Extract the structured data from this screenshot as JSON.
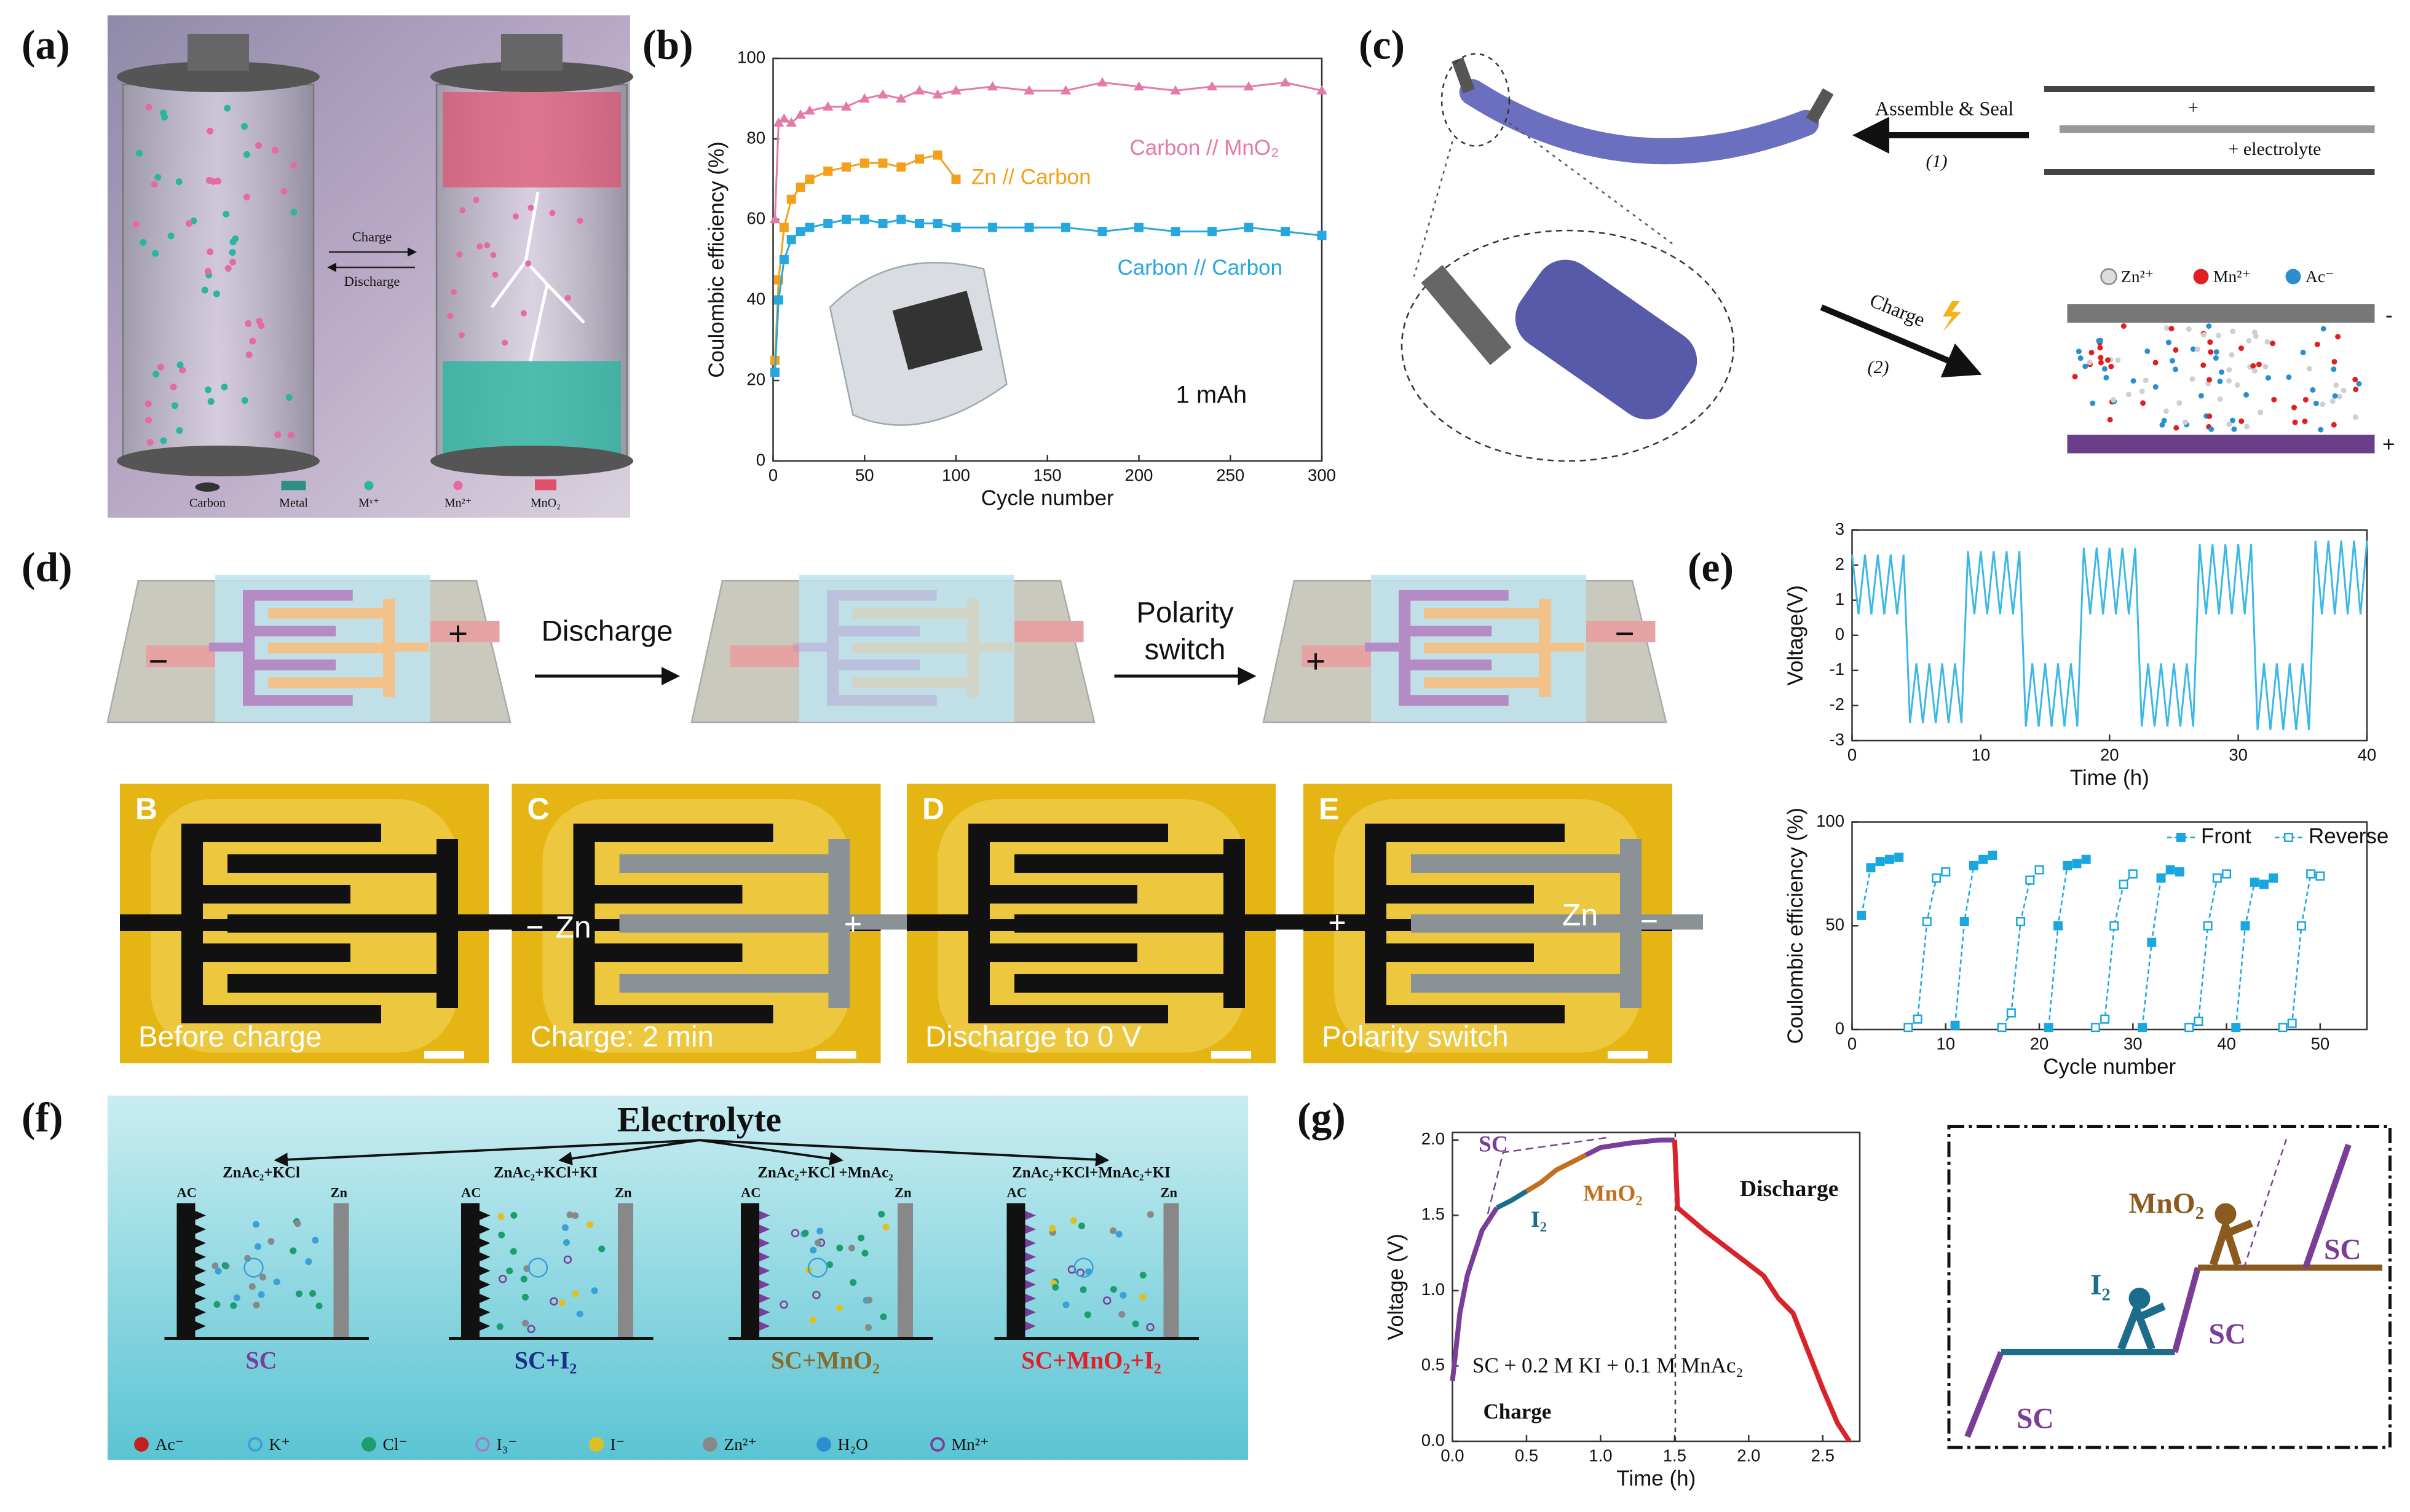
{
  "panel_labels": [
    "(a)",
    "(b)",
    "(c)",
    "(d)",
    "(e)",
    "(f)",
    "(g)"
  ],
  "panel_a": {
    "process": [
      "Charge",
      "Discharge"
    ],
    "legend": [
      "Carbon",
      "Metal",
      "Mˣ⁺",
      "Mn²⁺",
      "MnO₂"
    ]
  },
  "panel_c": {
    "step1": "Assemble & Seal",
    "step1_number": "(1)",
    "plus": "+",
    "electrolyte": "+ electrolyte",
    "step2": "Charge",
    "step2_number": "(2)",
    "ions": [
      "Zn²⁺",
      "Mn²⁺",
      "Ac⁻"
    ],
    "electrodes": [
      "-",
      "+"
    ]
  },
  "panel_d": {
    "step1": "Discharge",
    "step2": [
      "Polarity",
      "switch"
    ],
    "schematic_signs": {
      "first": [
        "−",
        "+"
      ],
      "third": [
        "+",
        "−"
      ]
    },
    "photos": [
      {
        "letter": "B",
        "caption": "Before charge"
      },
      {
        "letter": "C",
        "caption": "Charge: 2 min",
        "labels": [
          "−",
          "Zn",
          "+"
        ]
      },
      {
        "letter": "D",
        "caption": "Discharge to 0 V"
      },
      {
        "letter": "E",
        "caption": "Polarity switch",
        "labels": [
          "+",
          "Zn",
          "−"
        ]
      }
    ]
  },
  "panel_f": {
    "title": "Electrolyte",
    "cells": [
      {
        "composition": "ZnAc₂+KCl",
        "left": "AC",
        "right": "Zn",
        "label": "SC",
        "color": "#7a3d98"
      },
      {
        "composition": "ZnAc₂+KCl+KI",
        "left": "AC",
        "right": "Zn",
        "label": "SC+I₂",
        "color": "#1a2f8a"
      },
      {
        "composition": "ZnAc₂+KCl +MnAc₂",
        "left": "AC",
        "right": "Zn",
        "label": "SC+MnO₂",
        "color": "#8b6b2a"
      },
      {
        "composition": "ZnAc₂+KCl+MnAc₂+KI",
        "left": "AC",
        "right": "Zn",
        "label": "SC+MnO₂+I₂",
        "color": "#e0202a"
      }
    ],
    "legend": [
      "Ac⁻",
      "K⁺",
      "Cl⁻",
      "I₃⁻",
      "I⁻",
      "Zn²⁺",
      "H₂O",
      "Mn²⁺"
    ]
  },
  "panel_g_right": {
    "labels": [
      "MnO₂",
      "I₂",
      "SC",
      "SC",
      "SC"
    ]
  },
  "chart_data": [
    {
      "type": "line",
      "ylabel": "Coulombic efficiency (%)",
      "xlabel": "Cycle number",
      "annotations": [
        "1 mAh"
      ],
      "xlim": [
        0,
        300
      ],
      "xticks": [
        0,
        50,
        100,
        150,
        200,
        250,
        300
      ],
      "ylim": [
        0,
        100
      ],
      "yticks": [
        0,
        20,
        40,
        60,
        80,
        100
      ],
      "x": [
        1,
        3,
        6,
        10,
        15,
        20,
        30,
        40,
        50,
        60,
        70,
        80,
        90,
        100,
        120,
        140,
        160,
        180,
        200,
        220,
        240,
        260,
        280,
        300
      ],
      "series": [
        {
          "name": "Carbon // MnO₂",
          "color": "#e37aa9",
          "marker": "triangle",
          "values": [
            60,
            84,
            85,
            84,
            86,
            87,
            88,
            88,
            90,
            91,
            90,
            92,
            91,
            92,
            93,
            92,
            92,
            94,
            93,
            92,
            93,
            93,
            94,
            92
          ]
        },
        {
          "name": "Zn // Carbon",
          "color": "#f3a01c",
          "marker": "square",
          "values": [
            25,
            45,
            58,
            65,
            68,
            70,
            72,
            73,
            74,
            74,
            73,
            75,
            76,
            70,
            null,
            null,
            null,
            null,
            null,
            null,
            null,
            null,
            null,
            null
          ]
        },
        {
          "name": "Carbon // Carbon",
          "color": "#26a7de",
          "marker": "square",
          "values": [
            22,
            40,
            50,
            55,
            57,
            58,
            59,
            60,
            60,
            59,
            60,
            59,
            59,
            58,
            58,
            58,
            58,
            57,
            58,
            57,
            57,
            58,
            57,
            56
          ]
        }
      ]
    },
    {
      "type": "line",
      "ylabel": "Voltage(V)",
      "xlabel": "Time (h)",
      "color": "#3bb8e6",
      "xlim": [
        0,
        40
      ],
      "xticks": [
        0,
        10,
        20,
        30,
        40
      ],
      "ylim": [
        -3,
        3
      ],
      "yticks": [
        -3,
        -2,
        -1,
        0,
        1,
        2,
        3
      ],
      "x": [
        0,
        0.5,
        1,
        1.5,
        2,
        2.5,
        3,
        3.5,
        4,
        4.5,
        5,
        5.5,
        6,
        6.5,
        7,
        7.5,
        8,
        8.5,
        9,
        9.5,
        10,
        10.5,
        11,
        11.5,
        12,
        12.5,
        13,
        13.5,
        14,
        14.5,
        15,
        15.5,
        16,
        16.5,
        17,
        17.5,
        18,
        18.5,
        19,
        19.5,
        20,
        20.5,
        21,
        21.5,
        22,
        22.5,
        23,
        23.5,
        24,
        24.5,
        25,
        25.5,
        26,
        26.5,
        27,
        27.5,
        28,
        28.5,
        29,
        29.5,
        30,
        30.5,
        31,
        31.5,
        32,
        32.5,
        33,
        33.5,
        34,
        34.5,
        35,
        35.5,
        36,
        36.5,
        37,
        37.5,
        38,
        38.5,
        39,
        39.5,
        40
      ],
      "values": [
        2.3,
        0.6,
        2.3,
        0.6,
        2.3,
        0.6,
        2.3,
        0.6,
        2.3,
        -2.5,
        -0.8,
        -2.5,
        -0.8,
        -2.5,
        -0.8,
        -2.5,
        -0.8,
        -2.5,
        2.4,
        0.6,
        2.4,
        0.6,
        2.4,
        0.6,
        2.4,
        0.6,
        2.4,
        -2.6,
        -0.8,
        -2.6,
        -0.8,
        -2.6,
        -0.8,
        -2.6,
        -0.8,
        -2.6,
        2.5,
        0.6,
        2.5,
        0.6,
        2.5,
        0.6,
        2.5,
        0.6,
        2.5,
        -2.6,
        -0.8,
        -2.6,
        -0.8,
        -2.6,
        -0.8,
        -2.6,
        -0.8,
        -2.6,
        2.6,
        0.6,
        2.6,
        0.6,
        2.6,
        0.6,
        2.6,
        0.6,
        2.6,
        -2.7,
        -0.8,
        -2.7,
        -0.8,
        -2.7,
        -0.8,
        -2.7,
        -0.8,
        -2.7,
        2.7,
        0.6,
        2.7,
        0.6,
        2.7,
        0.6,
        2.7,
        0.6,
        2.7
      ]
    },
    {
      "type": "line",
      "ylabel": "Coulombic efficiency (%)",
      "xlabel": "Cycle number",
      "legend": "upper right",
      "xlim": [
        0,
        55
      ],
      "xticks": [
        0,
        10,
        20,
        30,
        40,
        50
      ],
      "ylim": [
        0,
        100
      ],
      "yticks": [
        0,
        50,
        100
      ],
      "x": [
        1,
        2,
        3,
        4,
        5,
        6,
        7,
        8,
        9,
        10,
        11,
        12,
        13,
        14,
        15,
        16,
        17,
        18,
        19,
        20,
        21,
        22,
        23,
        24,
        25,
        26,
        27,
        28,
        29,
        30,
        31,
        32,
        33,
        34,
        35,
        36,
        37,
        38,
        39,
        40,
        41,
        42,
        43,
        44,
        45,
        46,
        47,
        48,
        49,
        50
      ],
      "series": [
        {
          "name": "Front",
          "color": "#1aa7e0",
          "marker": "square",
          "dashed": true,
          "values": [
            55,
            78,
            81,
            82,
            83,
            null,
            null,
            null,
            null,
            null,
            2,
            52,
            79,
            82,
            84,
            null,
            null,
            null,
            null,
            null,
            1,
            50,
            79,
            80,
            82,
            null,
            null,
            null,
            null,
            null,
            1,
            42,
            73,
            77,
            76,
            null,
            null,
            null,
            null,
            null,
            1,
            50,
            71,
            70,
            73,
            null,
            null,
            null,
            null,
            null
          ]
        },
        {
          "name": "Reverse",
          "color": "#1aa7e0",
          "marker": "square-open",
          "dashed": true,
          "values": [
            null,
            null,
            null,
            null,
            null,
            1,
            5,
            52,
            73,
            76,
            null,
            null,
            null,
            null,
            null,
            1,
            8,
            52,
            72,
            77,
            null,
            null,
            null,
            null,
            null,
            1,
            5,
            50,
            70,
            75,
            null,
            null,
            null,
            null,
            null,
            1,
            4,
            50,
            73,
            75,
            null,
            null,
            null,
            null,
            null,
            1,
            3,
            50,
            75,
            74
          ]
        }
      ]
    },
    {
      "type": "line",
      "ylabel": "Voltage (V)",
      "xlabel": "Time (h)",
      "annotations": [
        "SC + 0.2 M KI + 0.1 M MnAc₂",
        "Charge"
      ],
      "xlim": [
        0,
        2.75
      ],
      "xticks": [
        {
          "value": 0,
          "label": "0.0"
        },
        0.5,
        {
          "value": 1,
          "label": "1.0"
        },
        1.5,
        {
          "value": 2,
          "label": "2.0"
        },
        2.5
      ],
      "ylim": [
        0,
        2.05
      ],
      "yticks": [
        {
          "value": 0,
          "label": "0.0"
        },
        0.5,
        {
          "value": 1,
          "label": "1.0"
        },
        1.5,
        {
          "value": 2,
          "label": "2.0"
        }
      ],
      "x": [
        0,
        0.05,
        0.1,
        0.2,
        0.3,
        0.4,
        0.5,
        0.6,
        0.7,
        0.8,
        0.9,
        1.0,
        1.2,
        1.4,
        1.5,
        1.52,
        1.7,
        1.9,
        2.1,
        2.2,
        2.3,
        2.4,
        2.5,
        2.6,
        2.68
      ],
      "series": [
        {
          "name": "SC",
          "color": "#7a3d98",
          "values": [
            0.4,
            0.85,
            1.1,
            1.4,
            1.55,
            null,
            null,
            null,
            null,
            null,
            1.9,
            1.95,
            1.98,
            2.0,
            2.0,
            null,
            null,
            null,
            null,
            null,
            null,
            null,
            null,
            null,
            null
          ]
        },
        {
          "name": "I₂",
          "color": "#1c6d8c",
          "values": [
            null,
            null,
            null,
            null,
            1.55,
            1.6,
            1.66,
            null,
            null,
            null,
            null,
            null,
            null,
            null,
            null,
            null,
            null,
            null,
            null,
            null,
            null,
            null,
            null,
            null,
            null
          ]
        },
        {
          "name": "MnO₂",
          "color": "#c2701e",
          "values": [
            null,
            null,
            null,
            null,
            null,
            null,
            1.66,
            1.72,
            1.8,
            1.85,
            1.9,
            null,
            null,
            null,
            null,
            null,
            null,
            null,
            null,
            null,
            null,
            null,
            null,
            null,
            null
          ]
        },
        {
          "name": "Discharge",
          "color": "#d8232a",
          "values": [
            null,
            null,
            null,
            null,
            null,
            null,
            null,
            null,
            null,
            null,
            null,
            null,
            null,
            null,
            2.0,
            1.55,
            1.4,
            1.25,
            1.1,
            0.95,
            0.85,
            0.6,
            0.35,
            0.12,
            0.0
          ]
        }
      ]
    }
  ]
}
